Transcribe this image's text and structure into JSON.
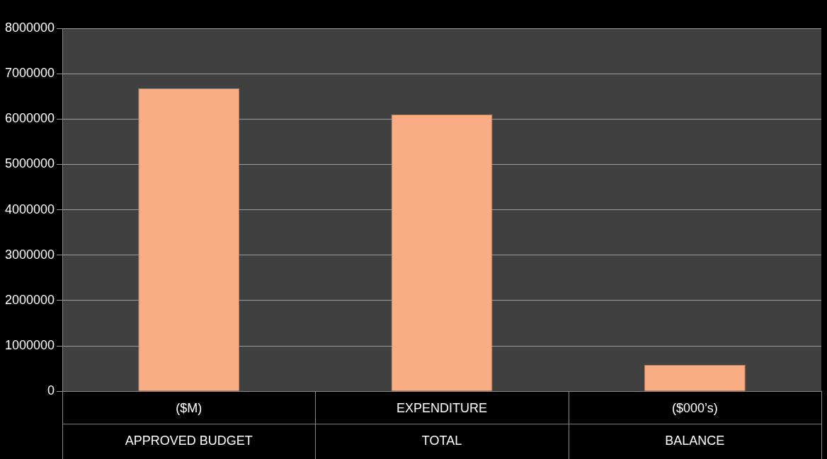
{
  "chart_data": {
    "type": "bar",
    "categories": [
      "($M)\nAPPROVED BUDGET",
      "EXPENDITURE\nTOTAL",
      "($000’s)\nBALANCE"
    ],
    "values": [
      6680000,
      6100000,
      580000
    ],
    "color": "#f9ad85",
    "ylim": [
      0,
      8000000
    ],
    "yticks": [
      0,
      1000000,
      2000000,
      3000000,
      4000000,
      5000000,
      6000000,
      7000000,
      8000000
    ],
    "grid": "y"
  }
}
